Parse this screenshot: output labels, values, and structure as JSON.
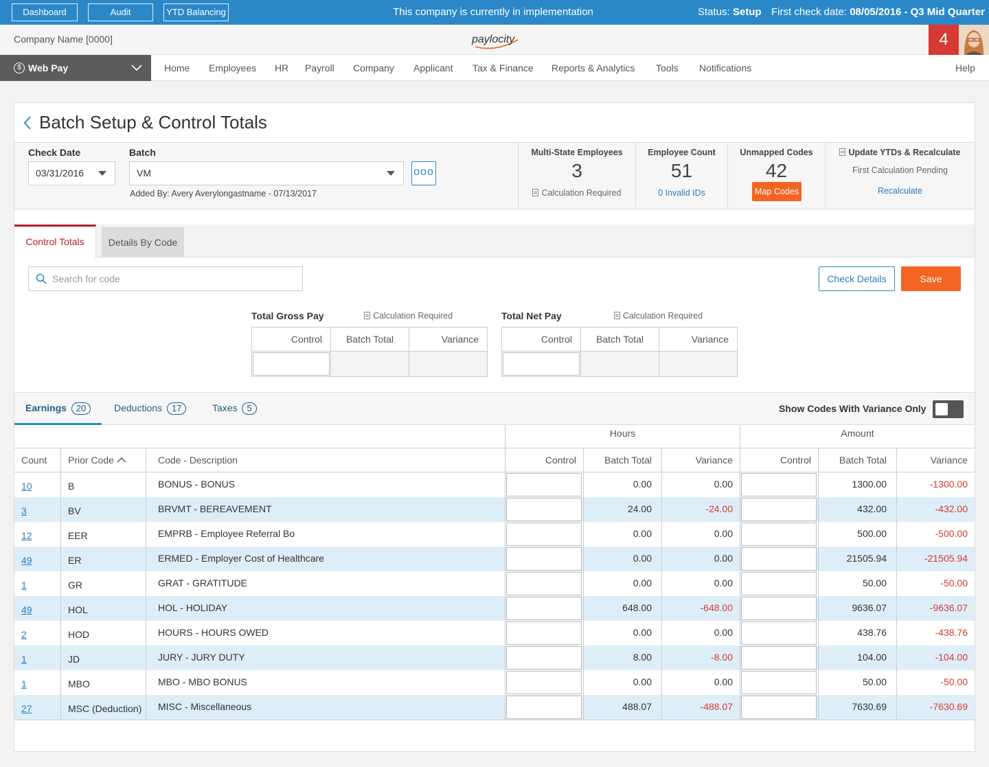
{
  "topbar": {
    "buttons": [
      "Dashboard",
      "Audit",
      "YTD Balancing"
    ],
    "implementation": "This company is currently in implementation",
    "status_label": "Status:",
    "status_value": "Setup",
    "first_check_label": "First check date:",
    "first_check_value": "08/05/2016 - Q3 Mid Quarter",
    "color": "#2b88c8"
  },
  "company": {
    "name": "Company Name [0000]",
    "logo_text": "paylocity",
    "notification_count": "4"
  },
  "nav": {
    "product": "Web Pay",
    "items": [
      "Home",
      "Employees",
      "HR",
      "Payroll",
      "Company",
      "Applicant",
      "Tax & Finance",
      "Reports & Analytics",
      "Tools",
      "Notifications"
    ],
    "help": "Help"
  },
  "page": {
    "title": "Batch Setup & Control Totals",
    "check_date_label": "Check Date",
    "check_date_value": "03/31/2016",
    "batch_label": "Batch",
    "batch_value": "VM",
    "more_label": "ooo",
    "added_by": "Added By: Avery Averylongastname - 07/13/2017"
  },
  "stats": {
    "multistate": {
      "title": "Multi-State Employees",
      "value": "3",
      "sub": "Calculation Required"
    },
    "employee_count": {
      "title": "Employee Count",
      "value": "51",
      "link": "0 Invalid IDs"
    },
    "unmapped": {
      "title": "Unmapped Codes",
      "value": "42",
      "button": "Map Codes"
    },
    "update": {
      "title": "Update YTDs & Recalculate",
      "sub": "First Calculation Pending",
      "link": "Recalculate"
    }
  },
  "tabs": {
    "active": "Control Totals",
    "inactive": "Details By Code"
  },
  "toolbar": {
    "search_placeholder": "Search for code",
    "check_details": "Check Details",
    "save": "Save"
  },
  "totals": {
    "gross": {
      "label": "Total Gross Pay",
      "calc": "Calculation Required"
    },
    "net": {
      "label": "Total Net Pay",
      "calc": "Calculation Required"
    },
    "columns": [
      "Control",
      "Batch Total",
      "Variance"
    ]
  },
  "subtabs": {
    "earnings": {
      "label": "Earnings",
      "count": "20"
    },
    "deductions": {
      "label": "Deductions",
      "count": "17"
    },
    "taxes": {
      "label": "Taxes",
      "count": "5"
    },
    "variance_only": "Show Codes With Variance Only"
  },
  "grid": {
    "group_hours": "Hours",
    "group_amount": "Amount",
    "headers": {
      "count": "Count",
      "prior_code": "Prior Code",
      "code_desc": "Code - Description",
      "h_control": "Control",
      "h_batch": "Batch Total",
      "h_variance": "Variance",
      "a_control": "Control",
      "a_batch": "Batch Total",
      "a_variance": "Variance"
    },
    "rows": [
      {
        "count": "10",
        "prior": "B",
        "desc": "BONUS - BONUS",
        "h_batch": "0.00",
        "h_var": "0.00",
        "a_batch": "1300.00",
        "a_var": "-1300.00"
      },
      {
        "count": "3",
        "prior": "BV",
        "desc": "BRVMT - BEREAVEMENT",
        "h_batch": "24.00",
        "h_var": "-24.00",
        "a_batch": "432.00",
        "a_var": "-432.00"
      },
      {
        "count": "12",
        "prior": "EER",
        "desc": "EMPRB - Employee Referral Bo",
        "h_batch": "0.00",
        "h_var": "0.00",
        "a_batch": "500.00",
        "a_var": "-500.00"
      },
      {
        "count": "49",
        "prior": "ER",
        "desc": "ERMED - Employer Cost of Healthcare",
        "h_batch": "0.00",
        "h_var": "0.00",
        "a_batch": "21505.94",
        "a_var": "-21505.94"
      },
      {
        "count": "1",
        "prior": "GR",
        "desc": "GRAT - GRATITUDE",
        "h_batch": "0.00",
        "h_var": "0.00",
        "a_batch": "50.00",
        "a_var": "-50.00"
      },
      {
        "count": "49",
        "prior": "HOL",
        "desc": "HOL - HOLIDAY",
        "h_batch": "648.00",
        "h_var": "-648.00",
        "a_batch": "9636.07",
        "a_var": "-9636.07"
      },
      {
        "count": "2",
        "prior": "HOD",
        "desc": "HOURS - HOURS OWED",
        "h_batch": "0.00",
        "h_var": "0.00",
        "a_batch": "438.76",
        "a_var": "-438.76"
      },
      {
        "count": "1",
        "prior": "JD",
        "desc": "JURY - JURY DUTY",
        "h_batch": "8.00",
        "h_var": "-8.00",
        "a_batch": "104.00",
        "a_var": "-104.00"
      },
      {
        "count": "1",
        "prior": "MBO",
        "desc": "MBO - MBO BONUS",
        "h_batch": "0.00",
        "h_var": "0.00",
        "a_batch": "50.00",
        "a_var": "-50.00"
      },
      {
        "count": "27",
        "prior": "MSC (Deduction)",
        "desc": "MISC - Miscellaneous",
        "h_batch": "488.07",
        "h_var": "-488.07",
        "a_batch": "7630.69",
        "a_var": "-7630.69"
      }
    ]
  },
  "colors": {
    "accent": "#2b88c8",
    "action": "#f26522",
    "alert": "#d63a32",
    "tab_active": "#b01e2b",
    "row_alt": "#ddeef9"
  }
}
